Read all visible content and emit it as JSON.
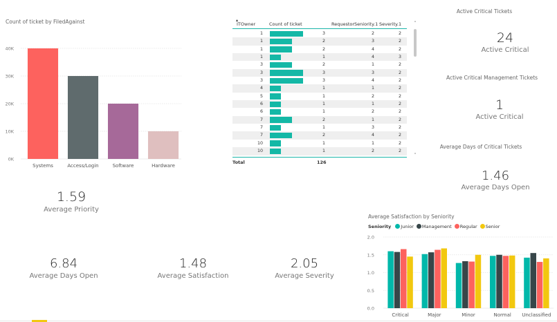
{
  "chart1": {
    "title": "Count of ticket by FiledAgainst"
  },
  "table": {
    "columns": [
      "ITOwner",
      "Count of ticket",
      "RequestorSeniority.1",
      "Severity.1"
    ],
    "count_max": 3,
    "rows": [
      {
        "owner": "1",
        "count": 3,
        "seniority": "2",
        "severity": "2"
      },
      {
        "owner": "1",
        "count": 2,
        "seniority": "3",
        "severity": "2"
      },
      {
        "owner": "1",
        "count": 2,
        "seniority": "4",
        "severity": "2"
      },
      {
        "owner": "1",
        "count": 1,
        "seniority": "4",
        "severity": "3"
      },
      {
        "owner": "3",
        "count": 2,
        "seniority": "1",
        "severity": "2"
      },
      {
        "owner": "3",
        "count": 3,
        "seniority": "3",
        "severity": "2"
      },
      {
        "owner": "3",
        "count": 3,
        "seniority": "4",
        "severity": "2"
      },
      {
        "owner": "4",
        "count": 1,
        "seniority": "1",
        "severity": "2"
      },
      {
        "owner": "5",
        "count": 1,
        "seniority": "2",
        "severity": "2"
      },
      {
        "owner": "6",
        "count": 1,
        "seniority": "1",
        "severity": "2"
      },
      {
        "owner": "6",
        "count": 1,
        "seniority": "2",
        "severity": "2"
      },
      {
        "owner": "7",
        "count": 2,
        "seniority": "1",
        "severity": "2"
      },
      {
        "owner": "7",
        "count": 1,
        "seniority": "3",
        "severity": "2"
      },
      {
        "owner": "7",
        "count": 2,
        "seniority": "4",
        "severity": "2"
      },
      {
        "owner": "10",
        "count": 1,
        "seniority": "1",
        "severity": "2"
      },
      {
        "owner": "10",
        "count": 1,
        "seniority": "2",
        "severity": "2"
      }
    ],
    "total_label": "Total",
    "total_value": "126",
    "sort_icon": "caret-up-icon",
    "scroll_up": "˄",
    "scroll_down": "˅"
  },
  "kpis": {
    "active_critical_title": "Active Critical Tickets",
    "active_critical_value": "24",
    "active_critical_label": "Active Critical",
    "mgmt_title": "Active Critical Management Tickets",
    "mgmt_value": "1",
    "mgmt_label": "Active Critical",
    "days_title": "Average Days of Critical Tickets",
    "days_value": "1.46",
    "days_label": "Average Days Open",
    "avg_priority_value": "1.59",
    "avg_priority_label": "Average Priority",
    "avg_days_value": "6.84",
    "avg_days_label": "Average Days Open",
    "avg_sat_value": "1.48",
    "avg_sat_label": "Average Satisfaction",
    "avg_sev_value": "2.05",
    "avg_sev_label": "Average Severity"
  },
  "chart2": {
    "title": "Average Satisfaction by Seniority",
    "legend_title": "Seniority"
  },
  "chart_data": [
    {
      "type": "bar",
      "title": "Count of ticket by FiledAgainst",
      "categories": [
        "Systems",
        "Access/Login",
        "Software",
        "Hardware"
      ],
      "values": [
        40000,
        30000,
        20000,
        10000
      ],
      "colors": [
        "#fd625e",
        "#5f6b6d",
        "#a66999",
        "#dfbfbf"
      ],
      "yticks": [
        "0K",
        "10K",
        "20K",
        "30K",
        "40K"
      ],
      "ylim": [
        0,
        45000
      ],
      "xlabel": "",
      "ylabel": "",
      "grid": true
    },
    {
      "type": "bar",
      "title": "Average Satisfaction by Seniority",
      "categories": [
        "Critical",
        "Major",
        "Minor",
        "Normal",
        "Unclassified"
      ],
      "series": [
        {
          "name": "Junior",
          "color": "#01b8aa",
          "values": [
            1.6,
            1.52,
            1.27,
            1.47,
            1.42
          ]
        },
        {
          "name": "Management",
          "color": "#374649",
          "values": [
            1.58,
            1.57,
            1.32,
            1.5,
            1.55
          ]
        },
        {
          "name": "Regular",
          "color": "#fd625e",
          "values": [
            1.66,
            1.64,
            1.31,
            1.47,
            1.3
          ]
        },
        {
          "name": "Senior",
          "color": "#f2c80f",
          "values": [
            1.45,
            1.68,
            1.5,
            1.48,
            1.4
          ]
        }
      ],
      "yticks": [
        "0.0",
        "0.5",
        "1.0",
        "1.5",
        "2.0"
      ],
      "ylim": [
        0,
        2.0
      ],
      "legend": "top-left",
      "grid": true
    }
  ]
}
